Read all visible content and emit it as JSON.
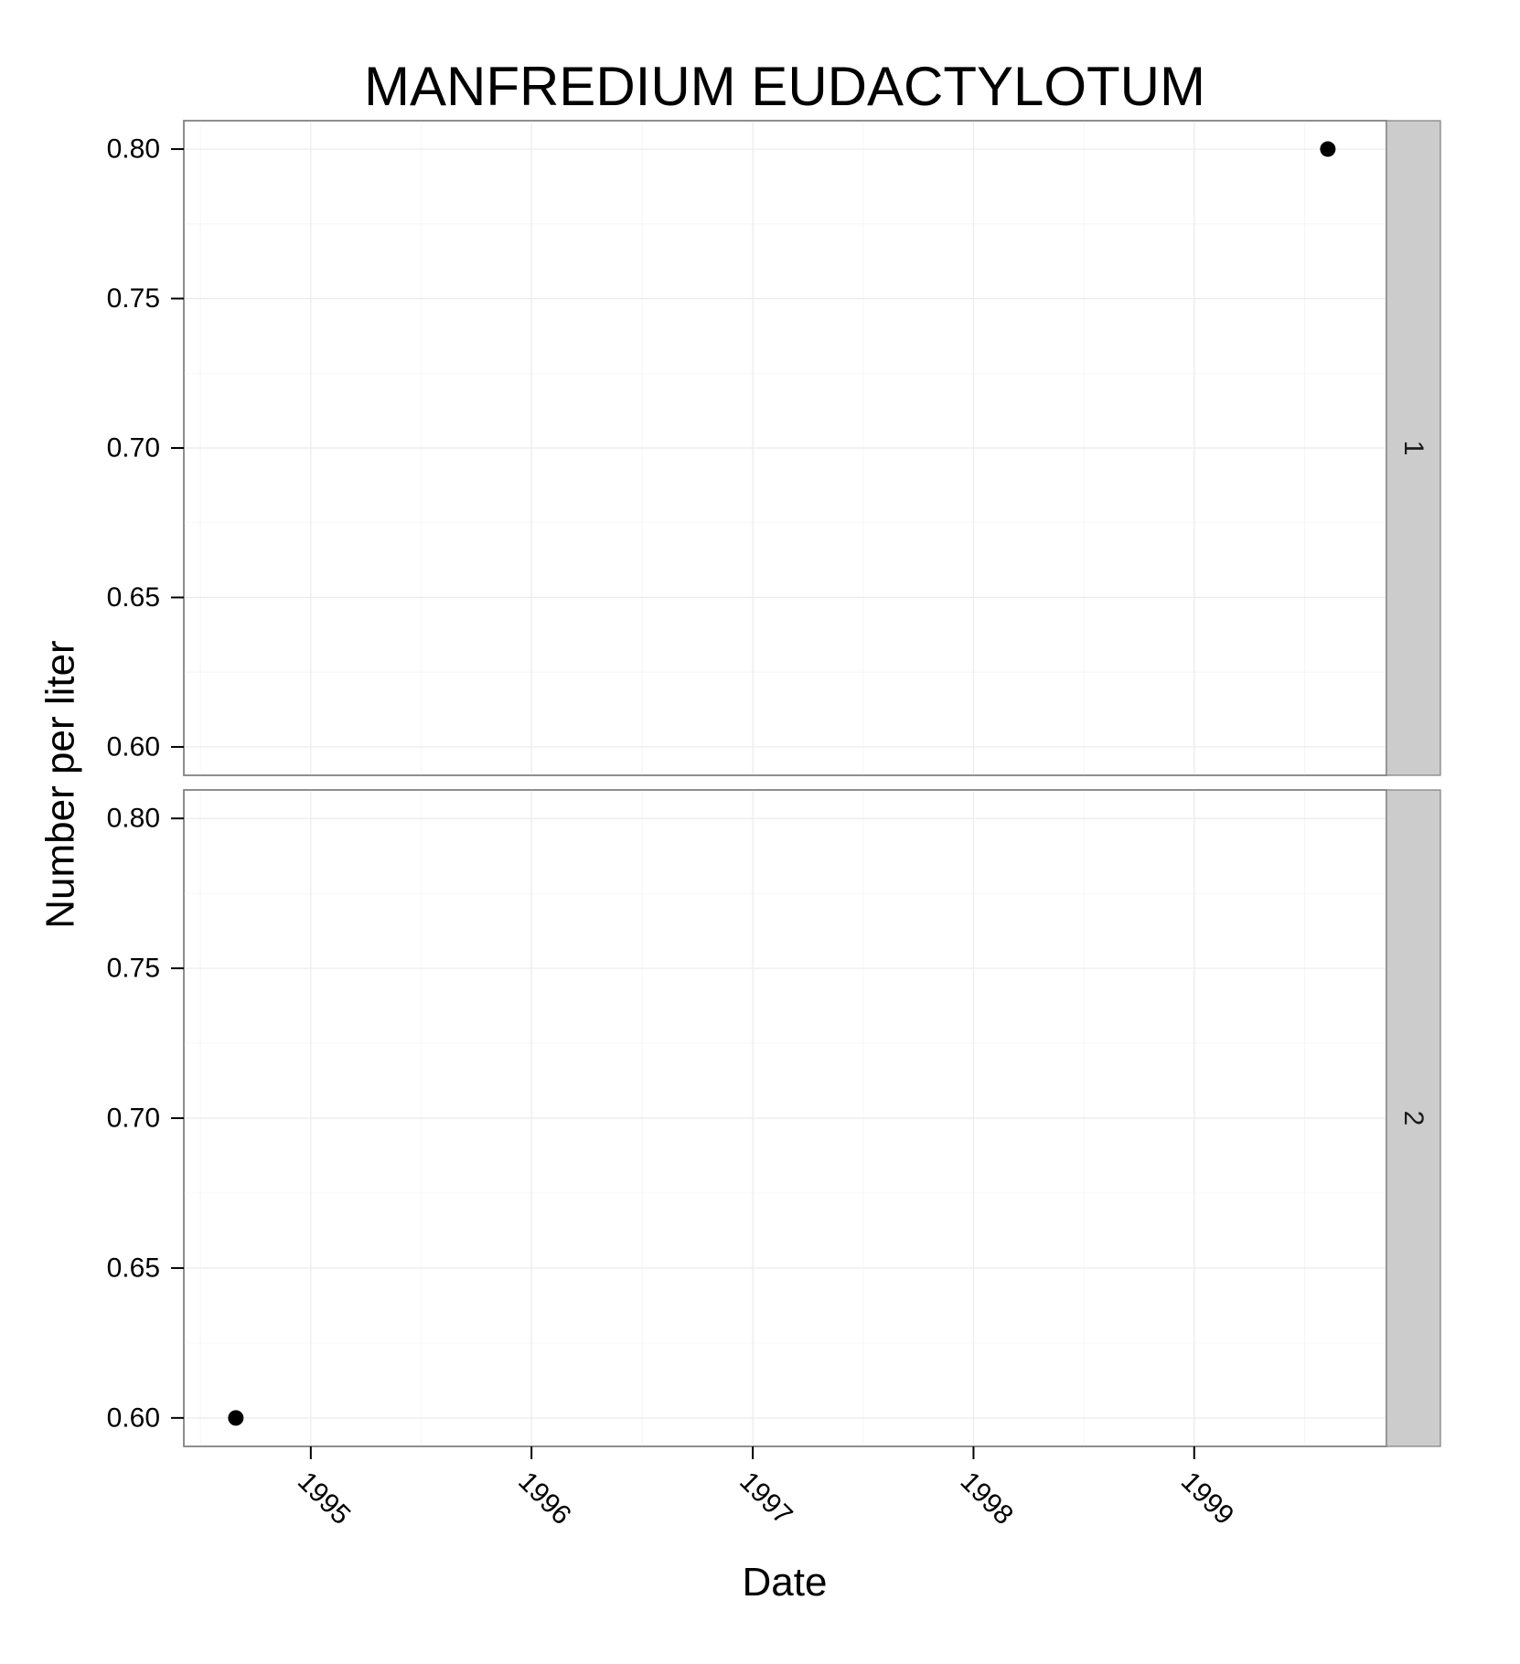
{
  "chart_data": {
    "type": "scatter",
    "title": "MANFREDIUM EUDACTYLOTUM",
    "xlabel": "Date",
    "ylabel": "Number per liter",
    "x_axis": {
      "kind": "date",
      "range": [
        "1994-06-05",
        "1999-11-15"
      ],
      "ticks": [
        "1995-01-01",
        "1996-01-01",
        "1997-01-01",
        "1998-01-01",
        "1999-01-01"
      ],
      "tick_labels": [
        "1995",
        "1996",
        "1997",
        "1998",
        "1999"
      ],
      "tick_label_rotation": "-45° (slanted downward)"
    },
    "y_axis": {
      "range": [
        0.5905,
        0.8095
      ],
      "ticks": [
        0.6,
        0.65,
        0.7,
        0.75,
        0.8
      ],
      "tick_labels": [
        "0.60",
        "0.65",
        "0.70",
        "0.75",
        "0.80"
      ]
    },
    "grid": true,
    "legend": "none",
    "facets": [
      {
        "strip_label": "1",
        "points": [
          {
            "x": "1999-08-10",
            "y": 0.8
          }
        ]
      },
      {
        "strip_label": "2",
        "points": [
          {
            "x": "1994-08-30",
            "y": 0.6
          }
        ]
      }
    ],
    "colors": {
      "point": "#000000",
      "strip": "#cccccc",
      "panel_border": "#7f7f7f",
      "grid": "#ebebeb"
    }
  }
}
